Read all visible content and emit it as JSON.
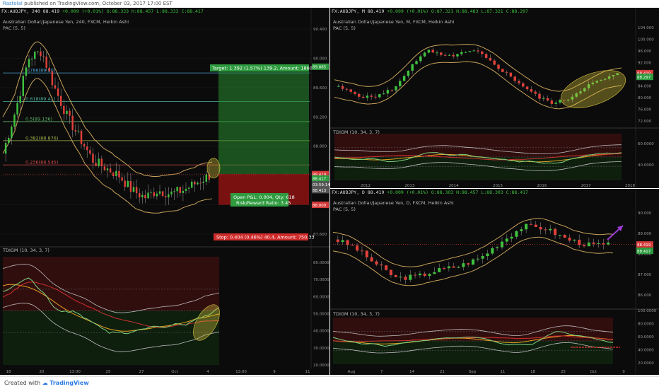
{
  "header": {
    "author": "Rastolal",
    "rest": " published on TradingView.com, October 03, 2017 17:00 EST"
  },
  "footer": {
    "prefix": "Created with",
    "brand": "TradingView"
  },
  "panel_left": {
    "symbol": "FX:AUDJPY, 240",
    "quote": {
      "last": "88.419",
      "change": "+0.009 (+0.01%)",
      "o": "O:88.333",
      "h": "H:88.457",
      "l": "L:88.333",
      "c": "C:88.417"
    },
    "title": "Australian Dollar/Japanese Yen, 240, FXCM, Heikin Ashi",
    "pac": "PAC (5, 5)",
    "fib": [
      {
        "label": "0.786(89.80)"
      },
      {
        "label": "0.618(89.41)"
      },
      {
        "label": "0.5(89.136)"
      },
      {
        "label": "0.382(88.876)"
      },
      {
        "label": "0.236(88.545)"
      }
    ],
    "target": "Target: 1.392 (1.57%) 139.2, Amount: 1860.26",
    "stop": "Stop: 0.404 (0.46%) 40.4, Amount: 750.33",
    "position": "Open P&L: 0.004, Qty: 618",
    "rr": "Risk/Reward Ratio: 3.45",
    "price_axis": [
      "90.400",
      "90.000",
      "89.600",
      "89.200",
      "88.800",
      "88.400",
      "88.000",
      "87.600"
    ],
    "price_tags": [
      {
        "text": "89.885",
        "color": "#2e9b3f"
      },
      {
        "text": "88.419",
        "color": "#d63a3a"
      },
      {
        "text": "88.417",
        "color": "#2e9b3f"
      },
      {
        "text": "03:59:14",
        "color": "#555555"
      },
      {
        "text": "88.413",
        "color": "#555555"
      },
      {
        "text": "88.000",
        "color": "#d63a3a"
      }
    ],
    "osc_title": "TDIGM (10, 34, 3, 7)",
    "osc_axis": [
      "80.0000",
      "70.0000",
      "60.0000",
      "50.0000",
      "40.0000",
      "30.0000",
      "20.0000"
    ],
    "time_axis": [
      "18",
      "20",
      "13:00",
      "25",
      "27",
      "Oct",
      "4",
      "13:00",
      "9",
      "11"
    ]
  },
  "panel_tr": {
    "symbol": "FX:AUDJPY, M",
    "quote": {
      "last": "88.419",
      "change": "+0.009 (+0.01%)",
      "o": "O:87.321",
      "h": "H:88.483",
      "l": "L:87.321",
      "c": "C:88.297"
    },
    "title": "Australian Dollar/Japanese Yen, M, FXCM, Heikin Ashi",
    "pac": "PAC (5, 5)",
    "price_axis": [
      "104.000",
      "100.000",
      "96.000",
      "92.000",
      "88.000",
      "84.000",
      "80.000",
      "76.000",
      "72.000"
    ],
    "price_tags": [
      {
        "text": "88.419",
        "color": "#d63a3a"
      },
      {
        "text": "88.297",
        "color": "#2e9b3f"
      }
    ],
    "osc_title": "TDIGM (10, 34, 3, 7)",
    "osc_axis": [
      "60.0000",
      "40.0000"
    ],
    "time_axis": [
      "2012",
      "2013",
      "2014",
      "2015",
      "2016",
      "2017",
      "2018"
    ]
  },
  "panel_br": {
    "symbol": "FX:AUDJPY, D",
    "quote": {
      "last": "88.419",
      "change": "+0.009 (+0.01%)",
      "o": "O:88.303",
      "h": "H:88.457",
      "l": "L:88.303",
      "c": "C:88.417"
    },
    "title": "Australian Dollar/Japanese Yen, D, FXCM, Heikin Ashi",
    "pac": "PAC (5, 5)",
    "price_axis": [
      "90.000",
      "89.000",
      "88.000",
      "87.000",
      "86.000"
    ],
    "price_tags": [
      {
        "text": "88.419",
        "color": "#d63a3a"
      },
      {
        "text": "88.417",
        "color": "#2e9b3f"
      }
    ],
    "osc_title": "TDIGM (10, 34, 3, 7)",
    "osc_axis": [
      "100.0000",
      "80.0000",
      "60.0000",
      "40.0000",
      "20.0000"
    ],
    "time_axis": [
      "Aug",
      "7",
      "14",
      "21",
      "Sep",
      "11",
      "18",
      "25",
      "Oct",
      "9"
    ]
  },
  "colors": {
    "up": "#3ec13e",
    "down": "#e0403a",
    "pac": "#c8a25a",
    "bg": "#0b0b0b"
  }
}
